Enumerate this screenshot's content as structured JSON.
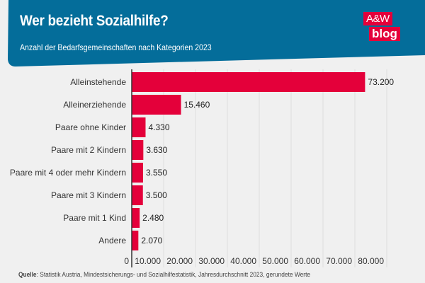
{
  "header": {
    "title": "Wer bezieht Sozialhilfe?",
    "subtitle": "Anzahl der Bedarfsgemeinschaften nach Kategorien 2023",
    "logo_top": "A&W",
    "logo_bottom": "blog"
  },
  "colors": {
    "header_bg": "#046d9a",
    "bar": "#e4003a",
    "background": "#f0f0f0",
    "gridline": "#dedede",
    "axis": "#333333"
  },
  "footer": {
    "source_label": "Quelle",
    "source_text": ": Statistik Austria, Mindestsicherungs- und Sozialhilfestatistik, Jahresdurchschnitt 2023, gerundete Werte"
  },
  "chart_data": {
    "type": "bar",
    "orientation": "horizontal",
    "title": "Wer bezieht Sozialhilfe?",
    "subtitle": "Anzahl der Bedarfsgemeinschaften nach Kategorien 2023",
    "xlabel": "",
    "ylabel": "",
    "categories": [
      "Alleinstehende",
      "Alleinerziehende",
      "Paare ohne Kinder",
      "Paare mit 2 Kindern",
      "Paare mit 4 oder mehr Kindern",
      "Paare mit 3 Kindern",
      "Paare mit 1 Kind",
      "Andere"
    ],
    "values": [
      73200,
      15460,
      4330,
      3630,
      3550,
      3500,
      2480,
      2070
    ],
    "value_labels": [
      "73.200",
      "15.460",
      "4.330",
      "3.630",
      "3.550",
      "3.500",
      "2.480",
      "2.070"
    ],
    "xlim": [
      0,
      80000
    ],
    "xticks": [
      0,
      10000,
      20000,
      30000,
      40000,
      50000,
      60000,
      70000,
      80000
    ],
    "xtick_labels": [
      "0",
      "10.000",
      "20.000",
      "30.000",
      "40.000",
      "50.000",
      "60.000",
      "70.000",
      "80.000"
    ],
    "grid": true,
    "legend": "none"
  }
}
